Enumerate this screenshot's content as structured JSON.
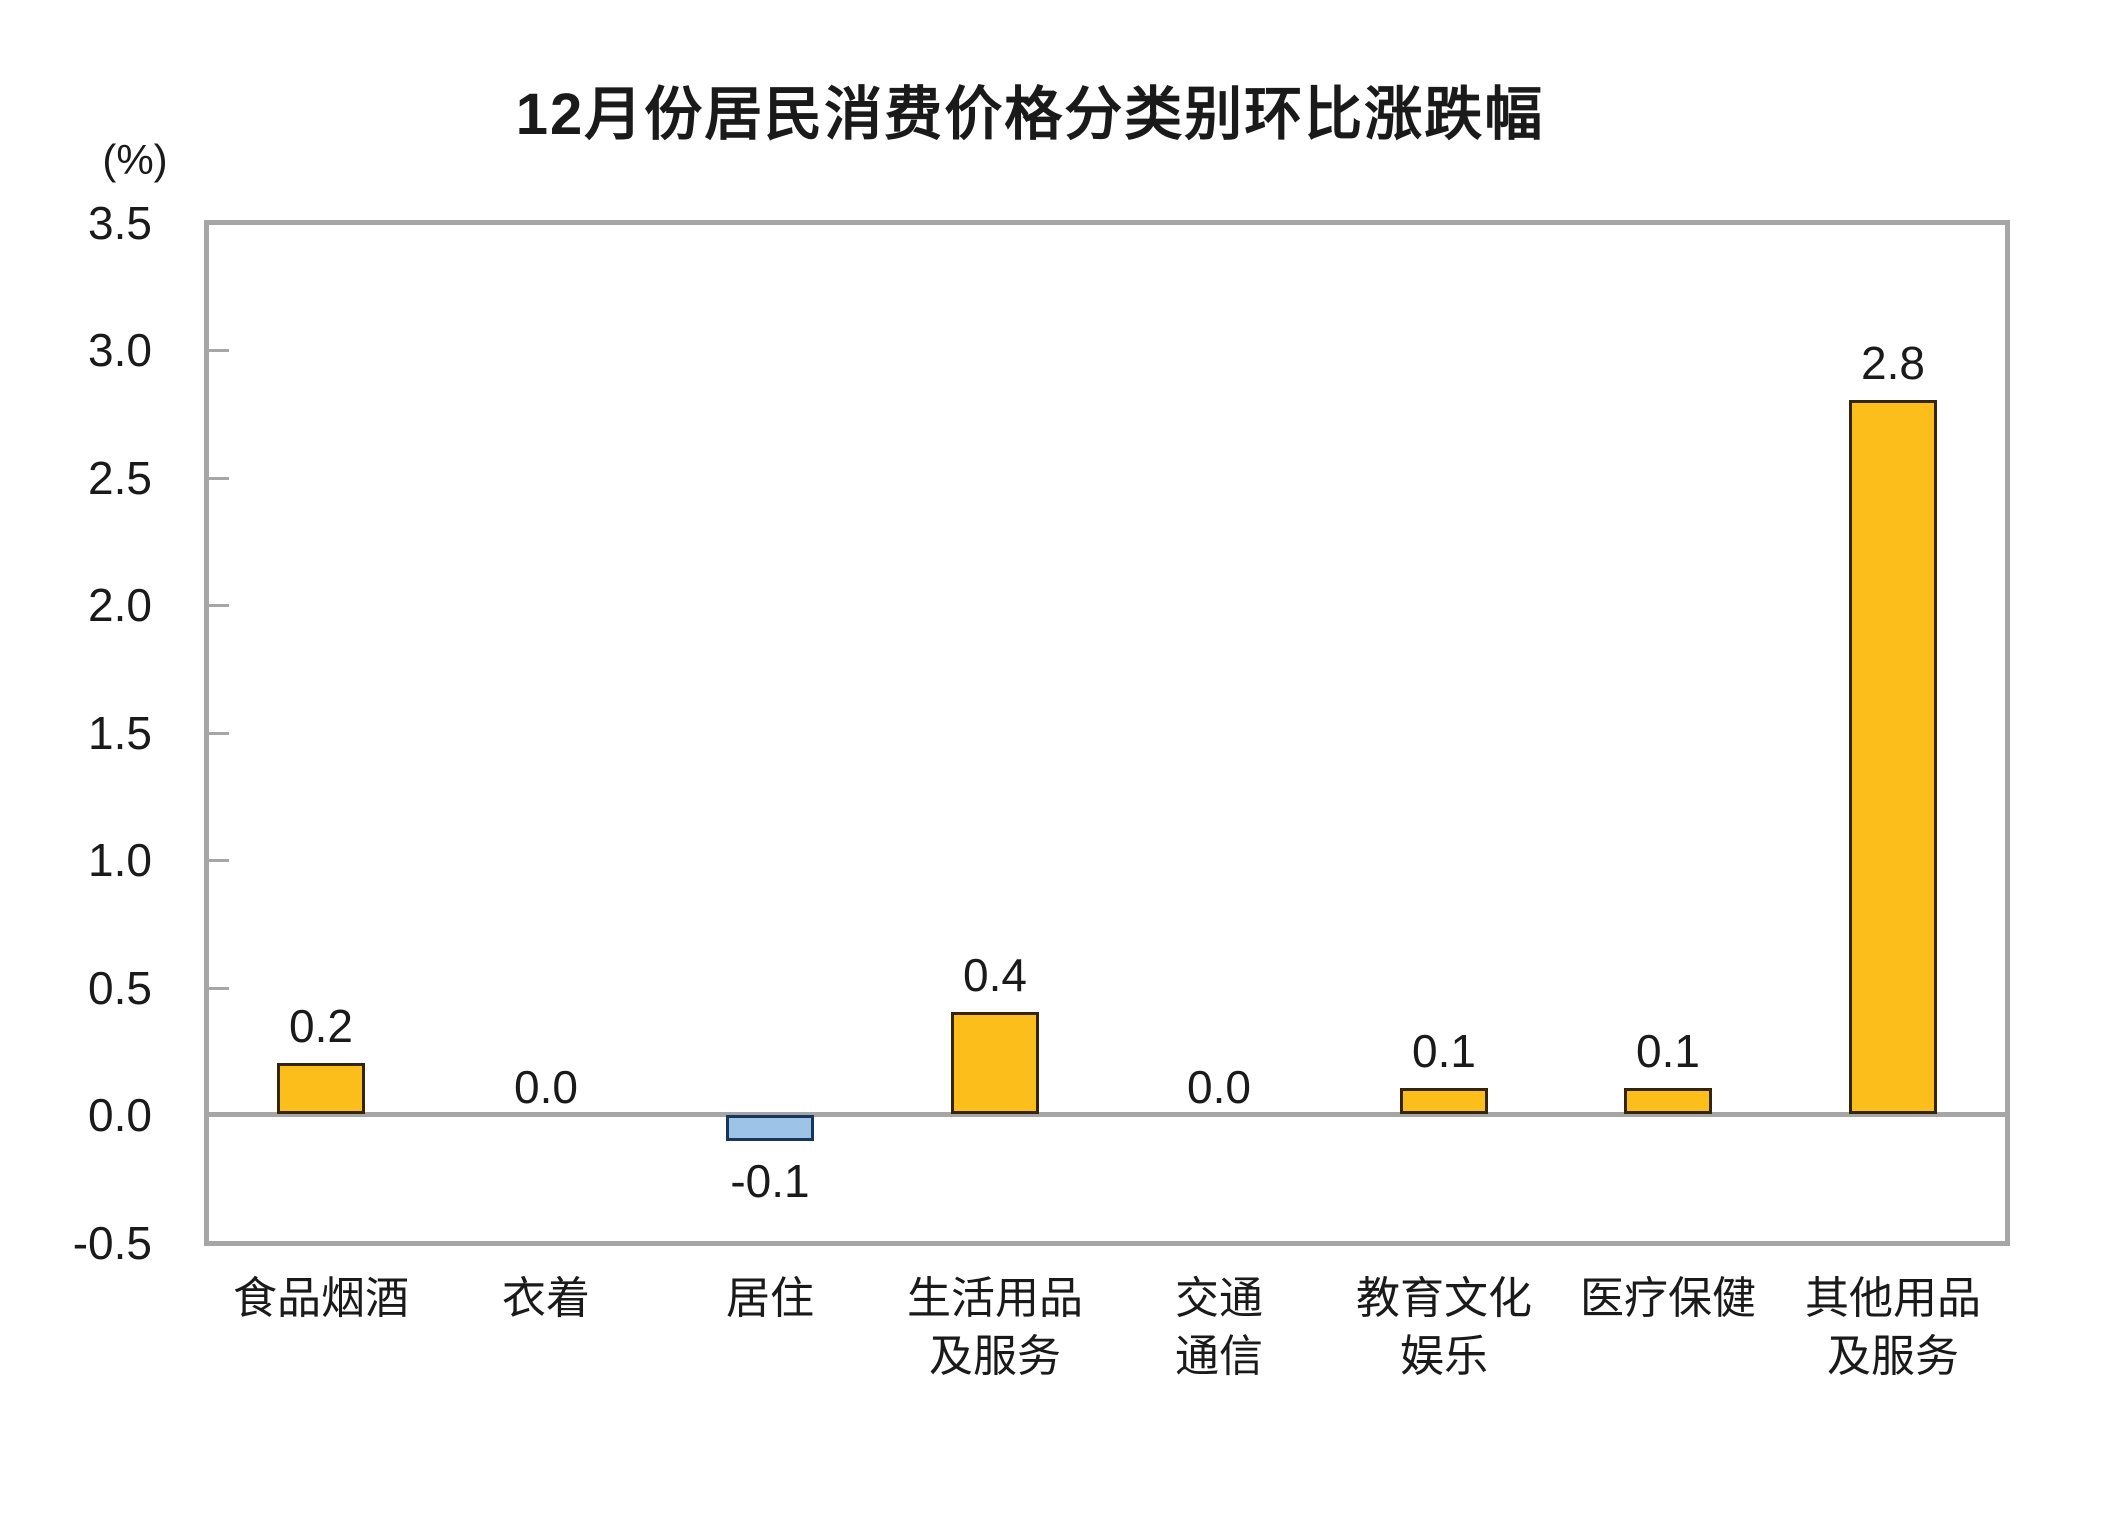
{
  "chart_data": {
    "type": "bar",
    "title": "12月份居民消费价格分类别环比涨跌幅",
    "unit_label": "(%)",
    "categories": [
      "食品烟酒",
      "衣着",
      "居住",
      "生活用品及服务",
      "交通通信",
      "教育文化娱乐",
      "医疗保健",
      "其他用品及服务"
    ],
    "category_label_lines": [
      [
        "食品烟酒"
      ],
      [
        "衣着"
      ],
      [
        "居住"
      ],
      [
        "生活用品",
        "及服务"
      ],
      [
        "交通",
        "通信"
      ],
      [
        "教育文化",
        "娱乐"
      ],
      [
        "医疗保健"
      ],
      [
        "其他用品",
        "及服务"
      ]
    ],
    "values": [
      0.2,
      0.0,
      -0.1,
      0.4,
      0.0,
      0.1,
      0.1,
      2.8
    ],
    "value_labels": [
      "0.2",
      "0.0",
      "-0.1",
      "0.4",
      "0.0",
      "0.1",
      "0.1",
      "2.8"
    ],
    "ylim": [
      -0.5,
      3.5
    ],
    "ytick_step": 0.5,
    "ytick_labels": [
      "3.5",
      "3.0",
      "2.5",
      "2.0",
      "1.5",
      "1.0",
      "0.5",
      "0.0",
      "-0.5"
    ],
    "grid": false,
    "legend": "none",
    "colors": {
      "positive_bar_fill": "#FCBE1B",
      "positive_bar_border": "#332505",
      "negative_bar_fill": "#9DC3E6",
      "negative_bar_border": "#17365D",
      "axis": "#A6A6A6",
      "text": "#1A1A1A"
    }
  }
}
